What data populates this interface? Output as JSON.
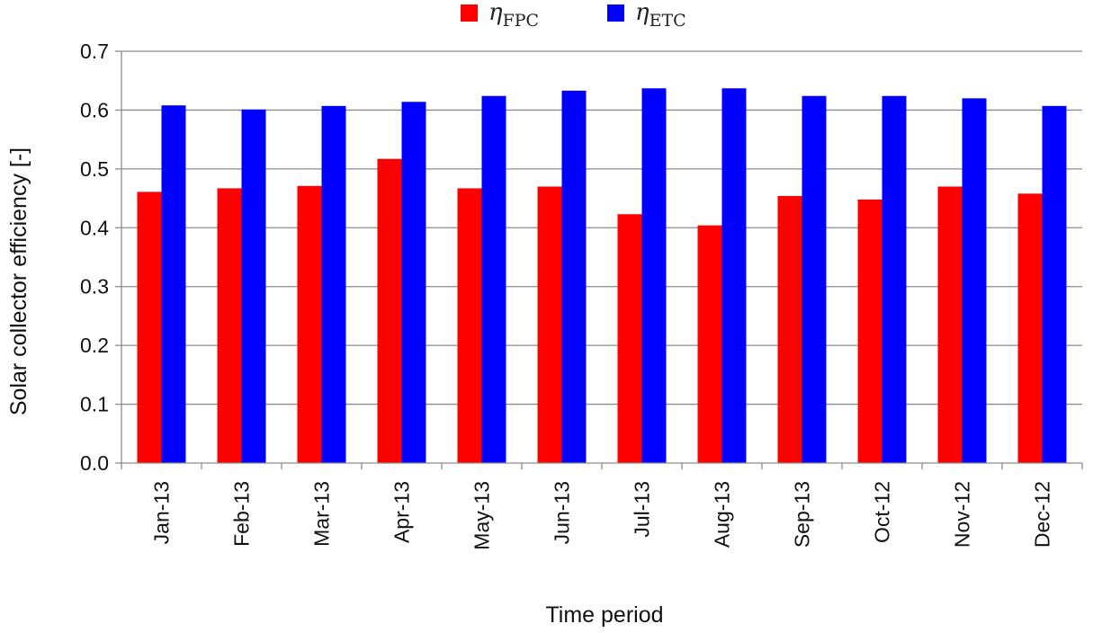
{
  "chart_data": {
    "type": "bar",
    "title": "",
    "xlabel": "Time period",
    "ylabel": "Solar collector efficiency  [-]",
    "ylim": [
      0,
      0.7
    ],
    "yticks": [
      "0.0",
      "0.1",
      "0.2",
      "0.3",
      "0.4",
      "0.5",
      "0.6",
      "0.7"
    ],
    "grid": true,
    "legend_position": "top-center",
    "categories": [
      "Jan-13",
      "Feb-13",
      "Mar-13",
      "Apr-13",
      "May-13",
      "Jun-13",
      "Jul-13",
      "Aug-13",
      "Sep-13",
      "Oct-12",
      "Nov-12",
      "Dec-12"
    ],
    "series": [
      {
        "name": "η",
        "name_subscript": "FPC",
        "color": "#ff0000",
        "values": [
          0.461,
          0.467,
          0.471,
          0.517,
          0.467,
          0.47,
          0.423,
          0.404,
          0.454,
          0.448,
          0.47,
          0.458
        ]
      },
      {
        "name": "η",
        "name_subscript": "ETC",
        "color": "#0000ff",
        "values": [
          0.608,
          0.601,
          0.607,
          0.614,
          0.624,
          0.633,
          0.637,
          0.637,
          0.624,
          0.624,
          0.62,
          0.607
        ]
      }
    ]
  }
}
